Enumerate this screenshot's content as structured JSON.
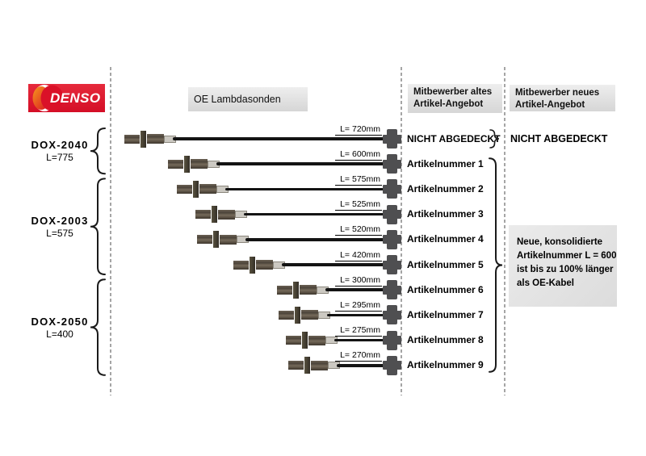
{
  "logo": {
    "brand": "DENSO"
  },
  "headers": {
    "oe_label": "OE Lambdasonden",
    "competitor_old_line1": "Mitbewerber altes",
    "competitor_old_line2": "Artikel-Angebot",
    "competitor_new_line1": "Mitbewerber neues",
    "competitor_new_line2": "Artikel-Angebot"
  },
  "groups": [
    {
      "model": "DOX-2040",
      "length_label": "L=775",
      "first_row": 0,
      "last_row": 1
    },
    {
      "model": "DOX-2003",
      "length_label": "L=575",
      "first_row": 2,
      "last_row": 5
    },
    {
      "model": "DOX-2050",
      "length_label": "L=400",
      "first_row": 6,
      "last_row": 9
    }
  ],
  "rows": [
    {
      "length_mm": 720,
      "length_label": "L= 720mm",
      "competitor_old": "NICHT ABGEDECKT"
    },
    {
      "length_mm": 600,
      "length_label": "L= 600mm",
      "competitor_old": "Artikelnummer 1"
    },
    {
      "length_mm": 575,
      "length_label": "L= 575mm",
      "competitor_old": "Artikelnummer 2"
    },
    {
      "length_mm": 525,
      "length_label": "L= 525mm",
      "competitor_old": "Artikelnummer 3"
    },
    {
      "length_mm": 520,
      "length_label": "L= 520mm",
      "competitor_old": "Artikelnummer 4"
    },
    {
      "length_mm": 420,
      "length_label": "L= 420mm",
      "competitor_old": "Artikelnummer 5"
    },
    {
      "length_mm": 300,
      "length_label": "L= 300mm",
      "competitor_old": "Artikelnummer 6"
    },
    {
      "length_mm": 295,
      "length_label": "L= 295mm",
      "competitor_old": "Artikelnummer 7"
    },
    {
      "length_mm": 275,
      "length_label": "L= 275mm",
      "competitor_old": "Artikelnummer 8"
    },
    {
      "length_mm": 270,
      "length_label": "L= 270mm",
      "competitor_old": "Artikelnummer 9"
    }
  ],
  "competitor_new": {
    "not_covered": "NICHT ABGEDECKT",
    "note_lines": [
      "Neue, konsolidierte",
      "Artikelnummer L = 600",
      "ist bis zu 100% länger",
      "als OE-Kabel"
    ]
  },
  "colors": {
    "brand_red": "#dd0a2c",
    "cable_black": "#141414",
    "connector_gray": "#4f4f51",
    "brace_black": "#1a1a1a"
  }
}
